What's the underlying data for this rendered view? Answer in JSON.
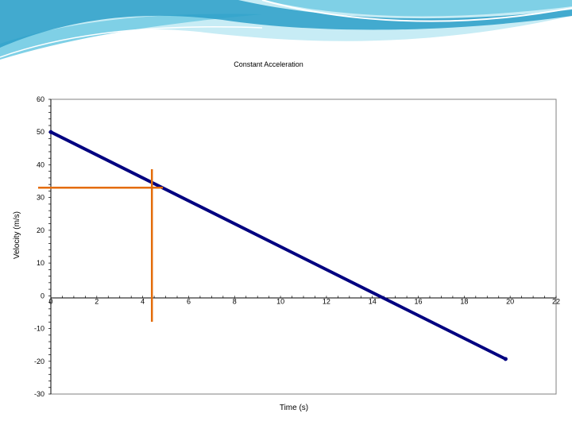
{
  "theme": {
    "swoosh_dark": "#2a9fc8",
    "swoosh_light": "#7fd0e6",
    "swoosh_pale": "#c7ecf5",
    "series_color": "#000080",
    "marker_color": "#e46c0a",
    "grid": false
  },
  "chart_data": {
    "type": "line",
    "title": "Constant Acceleration",
    "xlabel": "Time (s)",
    "ylabel": "Velocity (m/s)",
    "xlim": [
      0,
      22
    ],
    "ylim": [
      -30,
      60
    ],
    "x_ticks": [
      "0",
      "2",
      "4",
      "6",
      "8",
      "10",
      "12",
      "14",
      "16",
      "18",
      "20",
      "22"
    ],
    "y_ticks": [
      "60",
      "50",
      "40",
      "30",
      "20",
      "10",
      "0",
      "-10",
      "-20",
      "-30"
    ],
    "series": [
      {
        "x": [
          0,
          19.8
        ],
        "y": [
          50,
          -19.3
        ]
      }
    ],
    "annotations": {
      "vertical_marker_x": 4.4,
      "horizontal_marker_y": 33
    }
  }
}
